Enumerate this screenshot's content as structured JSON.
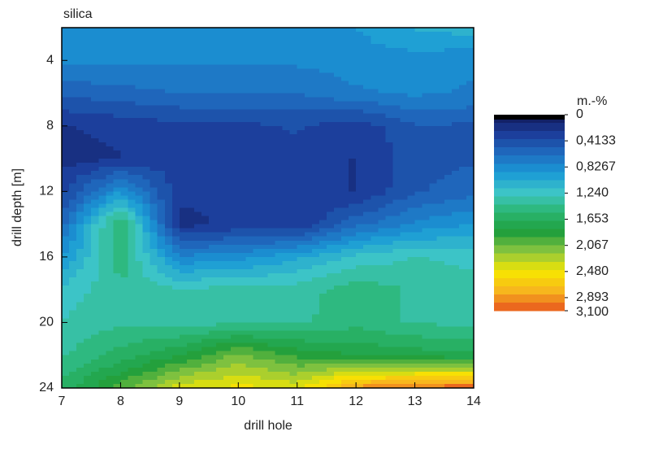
{
  "chart_data": {
    "type": "contour",
    "title": "silica",
    "xlabel": "drill hole",
    "ylabel": "drill depth [m]",
    "x": [
      7,
      8,
      9,
      10,
      11,
      12,
      13,
      14
    ],
    "y": [
      2,
      4,
      6,
      8,
      10,
      12,
      14,
      16,
      18,
      20,
      22,
      24
    ],
    "z": [
      [
        0.85,
        0.85,
        0.85,
        0.85,
        0.85,
        0.9,
        1.05,
        1.1
      ],
      [
        0.8,
        0.8,
        0.8,
        0.8,
        0.8,
        0.85,
        0.85,
        0.8
      ],
      [
        0.55,
        0.6,
        0.65,
        0.65,
        0.65,
        0.75,
        0.8,
        0.75
      ],
      [
        0.25,
        0.3,
        0.35,
        0.35,
        0.4,
        0.3,
        0.5,
        0.5
      ],
      [
        0.2,
        0.25,
        0.35,
        0.35,
        0.35,
        0.25,
        0.45,
        0.5
      ],
      [
        0.35,
        0.9,
        0.3,
        0.3,
        0.35,
        0.25,
        0.5,
        0.6
      ],
      [
        0.6,
        1.6,
        0.2,
        0.3,
        0.25,
        0.6,
        0.8,
        0.9
      ],
      [
        0.9,
        1.5,
        0.8,
        0.85,
        1.0,
        1.2,
        1.3,
        1.25
      ],
      [
        1.2,
        1.4,
        1.3,
        1.35,
        1.35,
        1.5,
        1.4,
        1.35
      ],
      [
        1.3,
        1.4,
        1.35,
        1.4,
        1.4,
        1.5,
        1.4,
        1.4
      ],
      [
        1.4,
        1.6,
        1.8,
        2.1,
        1.9,
        1.8,
        1.75,
        1.7
      ],
      [
        1.6,
        2.0,
        2.4,
        2.5,
        2.4,
        2.9,
        3.0,
        3.1
      ]
    ],
    "xlim": [
      7,
      14
    ],
    "xticks": [
      7,
      8,
      9,
      10,
      11,
      12,
      13,
      14
    ],
    "ylim": [
      2,
      24
    ],
    "yticks": [
      4,
      8,
      12,
      16,
      20,
      24
    ],
    "y_inverted": true,
    "colorbar_label": "m.-%",
    "zlim": [
      0,
      3.1
    ],
    "zticks": [
      0,
      {
        "value": 0.4133,
        "label": "0,4133"
      },
      {
        "value": 0.8267,
        "label": "0,8267"
      },
      {
        "value": 1.24,
        "label": "1,240"
      },
      {
        "value": 1.653,
        "label": "1,653"
      },
      {
        "value": 2.067,
        "label": "2,067"
      },
      {
        "value": 2.48,
        "label": "2,480"
      },
      {
        "value": 2.893,
        "label": "2,893"
      },
      {
        "value": 3.1,
        "label": "3,100"
      }
    ],
    "colormap": [
      "#111a5a",
      "#1c3d9a",
      "#1f6cc0",
      "#1a9ad6",
      "#3ec6c6",
      "#2ab56e",
      "#1f9e3c",
      "#8cc63f",
      "#f7e600",
      "#f7b51e",
      "#e8541e"
    ]
  }
}
